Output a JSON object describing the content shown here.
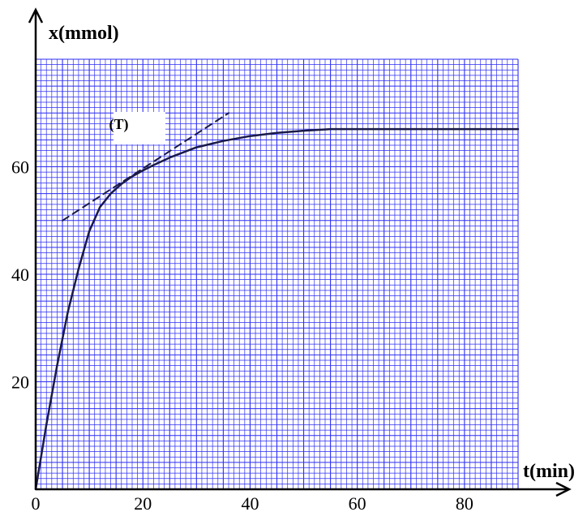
{
  "chart_data": {
    "type": "line",
    "xlabel": "t(min)",
    "ylabel": "x(mmol)",
    "xlim": [
      0,
      90
    ],
    "ylim": [
      0,
      80
    ],
    "x_ticks": [
      0,
      20,
      40,
      60,
      80
    ],
    "y_ticks": [
      20,
      40,
      60
    ],
    "x_tick_labels": [
      "0",
      "20",
      "40",
      "60",
      "80"
    ],
    "y_tick_labels": [
      "20",
      "40",
      "60"
    ],
    "grid": true,
    "grid_color": "#2d2df5",
    "background_color": "#ffffff",
    "series": [
      {
        "name": "",
        "style": "solid",
        "color": "#1a1a4a",
        "x": [
          0,
          2,
          4,
          6,
          8,
          10,
          12,
          14,
          16,
          18,
          20,
          22,
          25,
          30,
          35,
          40,
          45,
          50,
          55,
          60,
          70,
          80,
          90
        ],
        "y": [
          0,
          12,
          23,
          33,
          41,
          48,
          52.5,
          55,
          56.8,
          58.2,
          59.3,
          60.3,
          61.7,
          63.6,
          64.8,
          65.7,
          66.3,
          66.7,
          67,
          67,
          67,
          67,
          67
        ]
      },
      {
        "name": "",
        "style": "dashed",
        "color": "#1a1a4a",
        "x": [
          5,
          36
        ],
        "y": [
          50,
          70
        ]
      }
    ],
    "annotations": [
      {
        "text": "(T)",
        "x": 15.5,
        "y": 67
      }
    ]
  }
}
